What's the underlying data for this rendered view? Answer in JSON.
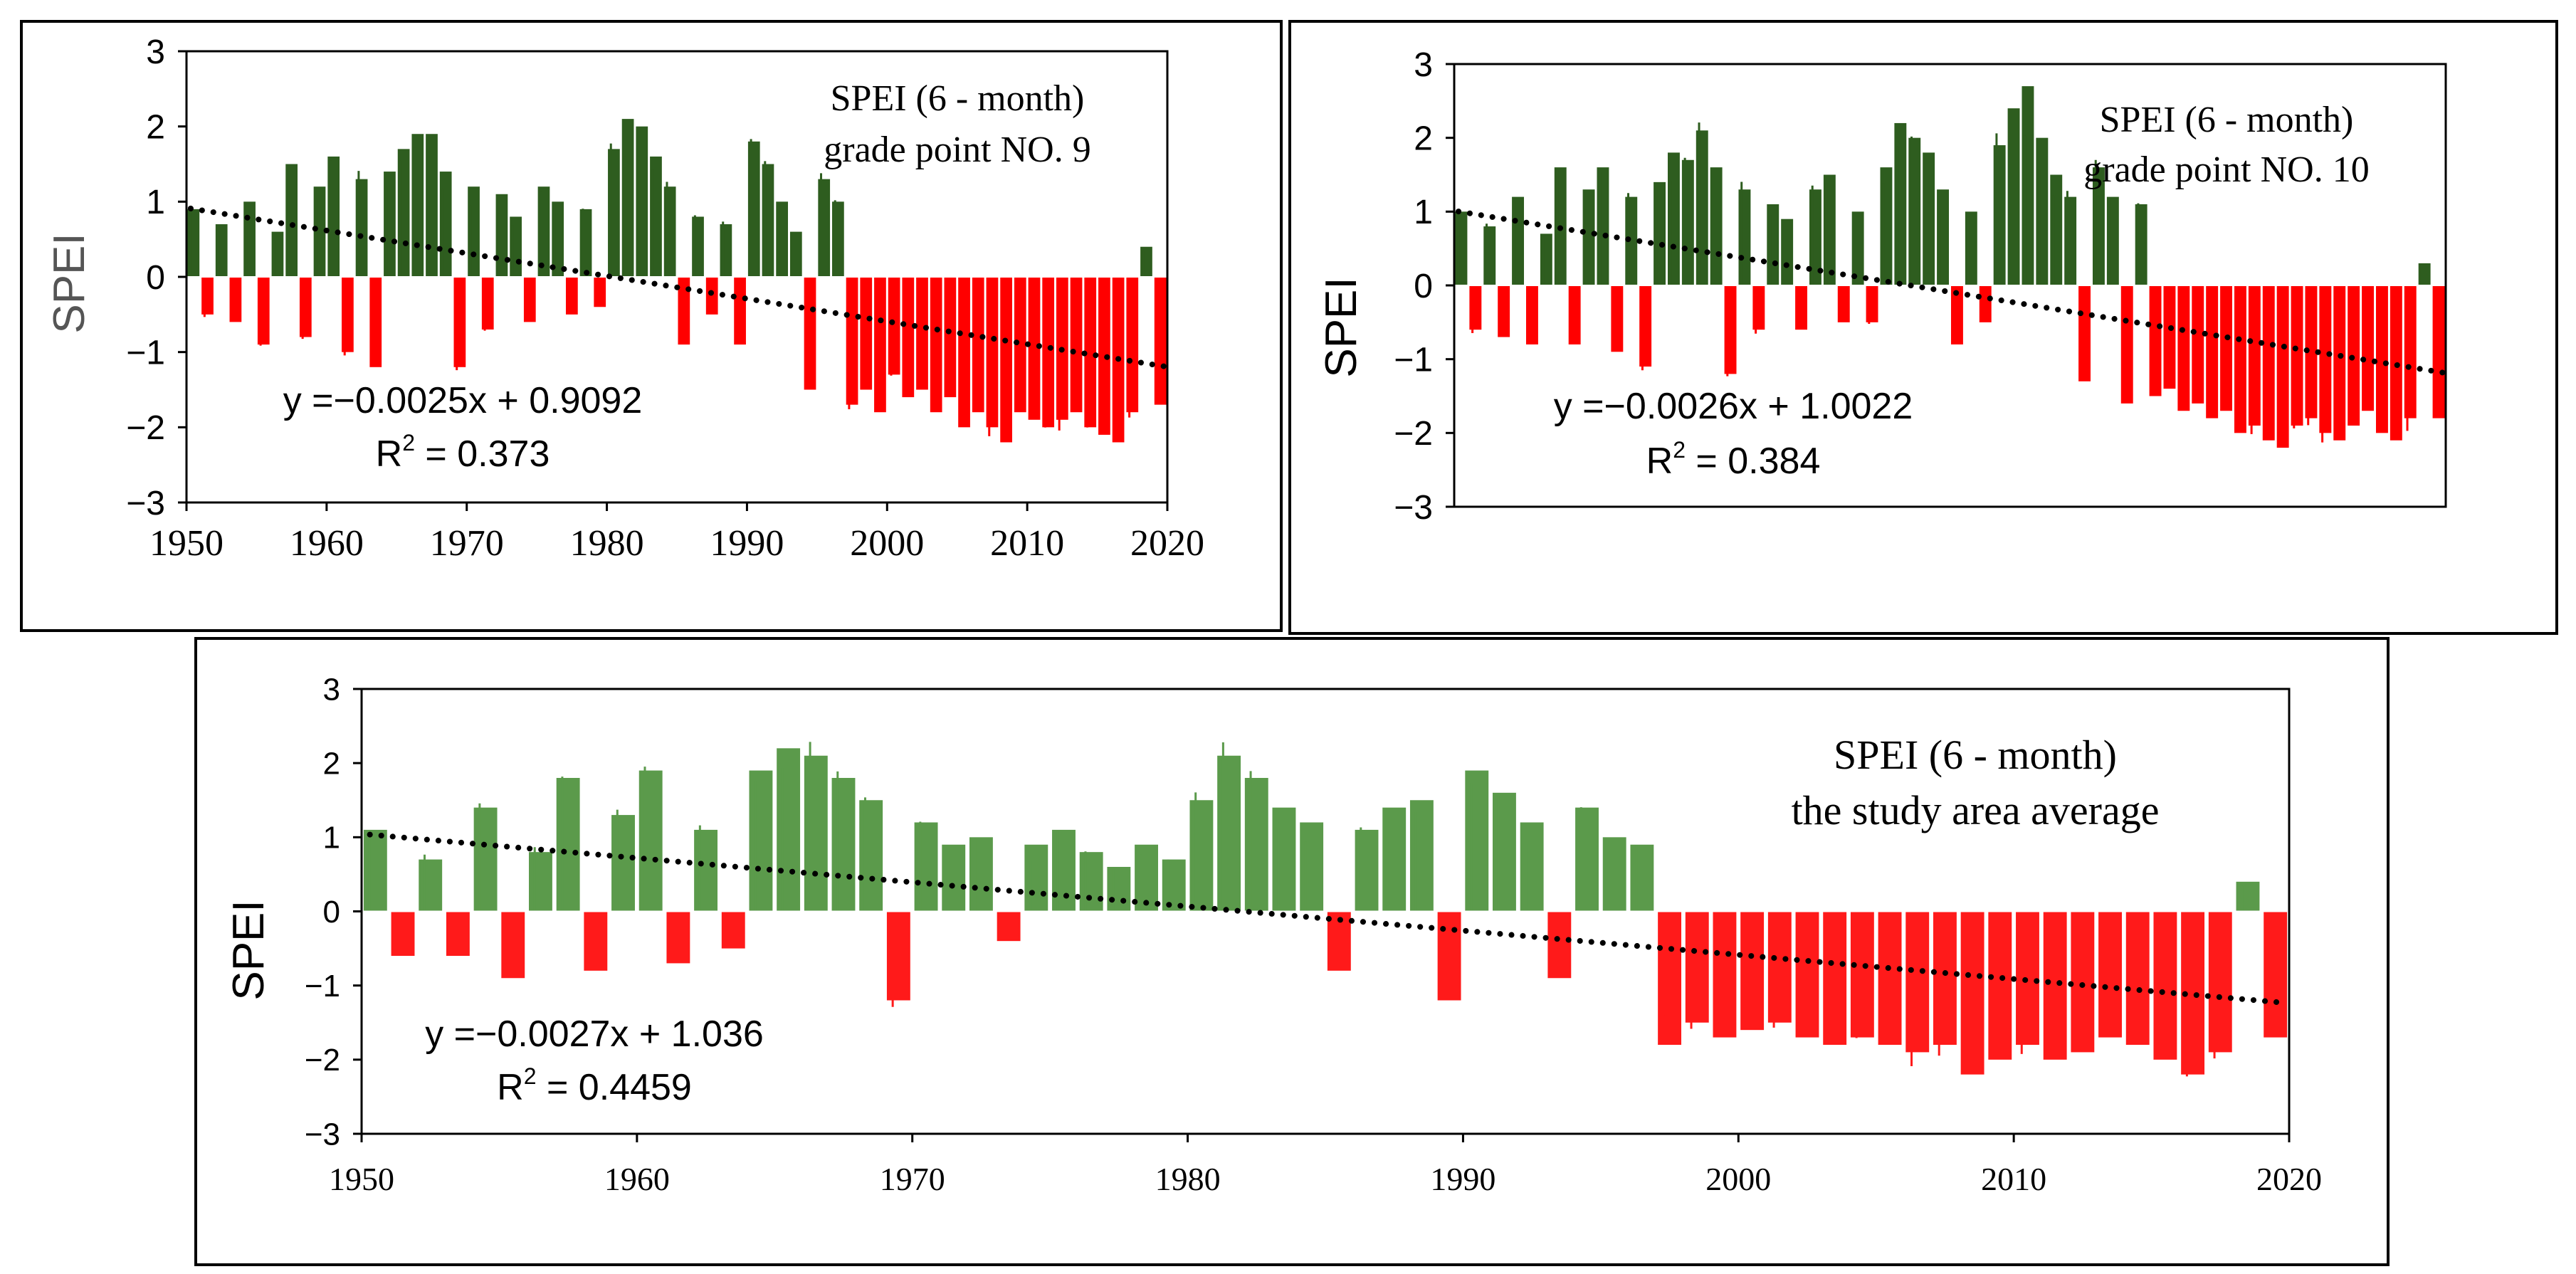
{
  "chart_data": [
    {
      "type": "bar",
      "id": "p9",
      "title_line1": "SPEI  (6 - month)",
      "title_line2": "grade point NO. 9",
      "ylabel": "SPEI",
      "xlim": [
        1950,
        2020
      ],
      "ylim": [
        -3,
        3
      ],
      "y_ticks": [
        "3",
        "2",
        "1",
        "0",
        "−1",
        "−2",
        "−3"
      ],
      "x_ticks": [
        "1950",
        "1960",
        "1970",
        "1980",
        "1990",
        "2000",
        "2010",
        "2020"
      ],
      "equation": "y =−0.0025x + 0.9092",
      "r_squared_label": "R",
      "r_squared_exp": "2",
      "r_squared_value": " = 0.373",
      "trend": {
        "slope": -0.0025,
        "intercept": 0.9092
      },
      "series": [
        {
          "name": "positive SPEI",
          "color": "#2e5d1f"
        },
        {
          "name": "negative SPEI",
          "color": "#ff0000"
        }
      ],
      "x": [
        1950.5,
        1951.5,
        1952.5,
        1953.5,
        1954.5,
        1955.5,
        1956.5,
        1957.5,
        1958.5,
        1959.5,
        1960.5,
        1961.5,
        1962.5,
        1963.5,
        1964.5,
        1965.5,
        1966.5,
        1967.5,
        1968.5,
        1969.5,
        1970.5,
        1971.5,
        1972.5,
        1973.5,
        1974.5,
        1975.5,
        1976.5,
        1977.5,
        1978.5,
        1979.5,
        1980.5,
        1981.5,
        1982.5,
        1983.5,
        1984.5,
        1985.5,
        1986.5,
        1987.5,
        1988.5,
        1989.5,
        1990.5,
        1991.5,
        1992.5,
        1993.5,
        1994.5,
        1995.5,
        1996.5,
        1997.5,
        1998.5,
        1999.5,
        2000.5,
        2001.5,
        2002.5,
        2003.5,
        2004.5,
        2005.5,
        2006.5,
        2007.5,
        2008.5,
        2009.5,
        2010.5,
        2011.5,
        2012.5,
        2013.5,
        2014.5,
        2015.5,
        2016.5,
        2017.5,
        2018.5,
        2019.5
      ],
      "values": [
        0.9,
        -0.5,
        0.7,
        -0.6,
        1.0,
        -0.9,
        0.6,
        1.5,
        -0.8,
        1.2,
        1.6,
        -1.0,
        1.3,
        -1.2,
        1.4,
        1.7,
        1.9,
        1.9,
        1.4,
        -1.2,
        1.2,
        -0.7,
        1.1,
        0.8,
        -0.6,
        1.2,
        1.0,
        -0.5,
        0.9,
        -0.4,
        1.7,
        2.1,
        2.0,
        1.6,
        1.2,
        -0.9,
        0.8,
        -0.5,
        0.7,
        -0.9,
        1.8,
        1.5,
        1.0,
        0.6,
        -1.5,
        1.3,
        1.0,
        -1.7,
        -1.5,
        -1.8,
        -1.3,
        -1.6,
        -1.5,
        -1.8,
        -1.6,
        -2.0,
        -1.8,
        -2.0,
        -2.2,
        -1.8,
        -1.9,
        -2.0,
        -1.9,
        -1.8,
        -2.0,
        -2.1,
        -2.2,
        -1.8,
        0.4,
        -1.7
      ]
    },
    {
      "type": "bar",
      "id": "p10",
      "title_line1": "SPEI  (6 - month)",
      "title_line2": "grade point NO. 10",
      "ylabel": "SPEI",
      "xlim": [
        1950,
        2020
      ],
      "ylim": [
        -3,
        3
      ],
      "y_ticks": [
        "3",
        "2",
        "1",
        "0",
        "−1",
        "−2",
        "−3"
      ],
      "x_ticks": [],
      "equation": "y =−0.0026x + 1.0022",
      "r_squared_label": "R",
      "r_squared_exp": "2",
      "r_squared_value": " = 0.384",
      "trend": {
        "slope": -0.0026,
        "intercept": 1.0022
      },
      "series": [
        {
          "name": "positive SPEI",
          "color": "#2e5d1f"
        },
        {
          "name": "negative SPEI",
          "color": "#ff0000"
        }
      ],
      "x": [
        1950.5,
        1951.5,
        1952.5,
        1953.5,
        1954.5,
        1955.5,
        1956.5,
        1957.5,
        1958.5,
        1959.5,
        1960.5,
        1961.5,
        1962.5,
        1963.5,
        1964.5,
        1965.5,
        1966.5,
        1967.5,
        1968.5,
        1969.5,
        1970.5,
        1971.5,
        1972.5,
        1973.5,
        1974.5,
        1975.5,
        1976.5,
        1977.5,
        1978.5,
        1979.5,
        1980.5,
        1981.5,
        1982.5,
        1983.5,
        1984.5,
        1985.5,
        1986.5,
        1987.5,
        1988.5,
        1989.5,
        1990.5,
        1991.5,
        1992.5,
        1993.5,
        1994.5,
        1995.5,
        1996.5,
        1997.5,
        1998.5,
        1999.5,
        2000.5,
        2001.5,
        2002.5,
        2003.5,
        2004.5,
        2005.5,
        2006.5,
        2007.5,
        2008.5,
        2009.5,
        2010.5,
        2011.5,
        2012.5,
        2013.5,
        2014.5,
        2015.5,
        2016.5,
        2017.5,
        2018.5,
        2019.5
      ],
      "values": [
        1.0,
        -0.6,
        0.8,
        -0.7,
        1.2,
        -0.8,
        0.7,
        1.6,
        -0.8,
        1.3,
        1.6,
        -0.9,
        1.2,
        -1.1,
        1.4,
        1.8,
        1.7,
        2.1,
        1.6,
        -1.2,
        1.3,
        -0.6,
        1.1,
        0.9,
        -0.6,
        1.3,
        1.5,
        -0.5,
        1.0,
        -0.5,
        1.6,
        2.2,
        2.0,
        1.8,
        1.3,
        -0.8,
        1.0,
        -0.5,
        1.9,
        2.4,
        2.7,
        2.0,
        1.5,
        1.2,
        -1.3,
        1.6,
        1.2,
        -1.6,
        1.1,
        -1.5,
        -1.4,
        -1.7,
        -1.6,
        -1.8,
        -1.7,
        -2.0,
        -1.9,
        -2.1,
        -2.2,
        -1.9,
        -1.8,
        -2.0,
        -2.1,
        -1.9,
        -1.7,
        -2.0,
        -2.1,
        -1.8,
        0.3,
        -1.8
      ]
    },
    {
      "type": "bar",
      "id": "avg",
      "title_line1": "SPEI  (6 - month)",
      "title_line2": "the study area average",
      "ylabel": "SPEI",
      "xlim": [
        1950,
        2020
      ],
      "ylim": [
        -3,
        3
      ],
      "y_ticks": [
        "3",
        "2",
        "1",
        "0",
        "−1",
        "−2",
        "−3"
      ],
      "x_ticks": [
        "1950",
        "1960",
        "1970",
        "1980",
        "1990",
        "2000",
        "2010",
        "2020"
      ],
      "equation": "y =−0.0027x + 1.036",
      "r_squared_label": "R",
      "r_squared_exp": "2",
      "r_squared_value": " = 0.4459",
      "trend": {
        "slope": -0.0027,
        "intercept": 1.036
      },
      "series": [
        {
          "name": "positive SPEI",
          "color": "#5b9a4b"
        },
        {
          "name": "negative SPEI",
          "color": "#ff1a1a"
        }
      ],
      "x": [
        1950.5,
        1951.5,
        1952.5,
        1953.5,
        1954.5,
        1955.5,
        1956.5,
        1957.5,
        1958.5,
        1959.5,
        1960.5,
        1961.5,
        1962.5,
        1963.5,
        1964.5,
        1965.5,
        1966.5,
        1967.5,
        1968.5,
        1969.5,
        1970.5,
        1971.5,
        1972.5,
        1973.5,
        1974.5,
        1975.5,
        1976.5,
        1977.5,
        1978.5,
        1979.5,
        1980.5,
        1981.5,
        1982.5,
        1983.5,
        1984.5,
        1985.5,
        1986.5,
        1987.5,
        1988.5,
        1989.5,
        1990.5,
        1991.5,
        1992.5,
        1993.5,
        1994.5,
        1995.5,
        1996.5,
        1997.5,
        1998.5,
        1999.5,
        2000.5,
        2001.5,
        2002.5,
        2003.5,
        2004.5,
        2005.5,
        2006.5,
        2007.5,
        2008.5,
        2009.5,
        2010.5,
        2011.5,
        2012.5,
        2013.5,
        2014.5,
        2015.5,
        2016.5,
        2017.5,
        2018.5,
        2019.5
      ],
      "values": [
        1.1,
        -0.6,
        0.7,
        -0.6,
        1.4,
        -0.9,
        0.8,
        1.8,
        -0.8,
        1.3,
        1.9,
        -0.7,
        1.1,
        -0.5,
        1.9,
        2.2,
        2.1,
        1.8,
        1.5,
        -1.2,
        1.2,
        0.9,
        1.0,
        -0.4,
        0.9,
        1.1,
        0.8,
        0.6,
        0.9,
        0.7,
        1.5,
        2.1,
        1.8,
        1.4,
        1.2,
        -0.8,
        1.1,
        1.4,
        1.5,
        -1.2,
        1.9,
        1.6,
        1.2,
        -0.9,
        1.4,
        1.0,
        0.9,
        -1.8,
        -1.5,
        -1.7,
        -1.6,
        -1.5,
        -1.7,
        -1.8,
        -1.7,
        -1.8,
        -1.9,
        -1.8,
        -2.2,
        -2.0,
        -1.8,
        -2.0,
        -1.9,
        -1.7,
        -1.8,
        -2.0,
        -2.2,
        -1.9,
        0.4,
        -1.7
      ]
    }
  ]
}
